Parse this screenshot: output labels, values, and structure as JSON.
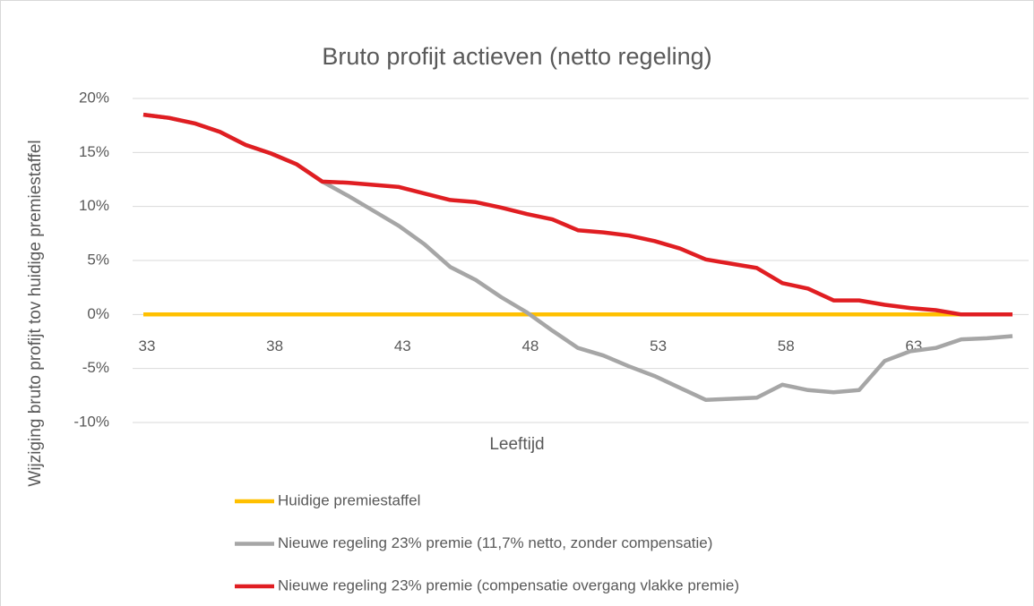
{
  "chart_data": {
    "type": "line",
    "title": "Bruto profijt actieven (netto regeling)",
    "xlabel": "Leeftijd",
    "ylabel": "Wijziging bruto profijt tov huidige premiestaffel",
    "x": [
      33,
      34,
      35,
      36,
      37,
      38,
      39,
      40,
      41,
      42,
      43,
      44,
      45,
      46,
      47,
      48,
      49,
      50,
      51,
      52,
      53,
      54,
      55,
      56,
      57,
      58,
      59,
      60,
      61,
      62,
      63,
      64,
      65,
      66,
      67
    ],
    "xlim": [
      33,
      67
    ],
    "xticks": [
      33,
      38,
      43,
      48,
      53,
      58,
      63
    ],
    "ylim": [
      -10,
      20
    ],
    "yticks": [
      {
        "value": -10,
        "label": "-10%"
      },
      {
        "value": -5,
        "label": "-5%"
      },
      {
        "value": 0,
        "label": "0%"
      },
      {
        "value": 5,
        "label": "5%"
      },
      {
        "value": 10,
        "label": "10%"
      },
      {
        "value": 15,
        "label": "15%"
      },
      {
        "value": 20,
        "label": "20%"
      }
    ],
    "grid": true,
    "legend": "bottom",
    "series": [
      {
        "name": "Huidige premiestaffel",
        "color": "#ffc000",
        "values": [
          0,
          0,
          0,
          0,
          0,
          0,
          0,
          0,
          0,
          0,
          0,
          0,
          0,
          0,
          0,
          0,
          0,
          0,
          0,
          0,
          0,
          0,
          0,
          0,
          0,
          0,
          0,
          0,
          0,
          0,
          0,
          0,
          0,
          0,
          0
        ]
      },
      {
        "name": "Nieuwe regeling 23% premie (11,7% netto, zonder compensatie)",
        "color": "#a6a6a6",
        "values": [
          18.5,
          18.2,
          17.7,
          16.9,
          15.7,
          14.9,
          13.9,
          12.3,
          11.0,
          9.6,
          8.2,
          6.5,
          4.4,
          3.2,
          1.6,
          0.2,
          -1.5,
          -3.1,
          -3.8,
          -4.8,
          -5.7,
          -6.8,
          -7.9,
          -7.8,
          -7.7,
          -6.5,
          -7.0,
          -7.2,
          -7.0,
          -4.3,
          -3.4,
          -3.1,
          -2.3,
          -2.2,
          -2.0
        ]
      },
      {
        "name": "Nieuwe regeling 23% premie (compensatie overgang vlakke premie)",
        "color": "#e01e22",
        "values": [
          18.5,
          18.2,
          17.7,
          16.9,
          15.7,
          14.9,
          13.9,
          12.3,
          12.2,
          12.0,
          11.8,
          11.2,
          10.6,
          10.4,
          9.9,
          9.3,
          8.8,
          7.8,
          7.6,
          7.3,
          6.8,
          6.1,
          5.1,
          4.7,
          4.3,
          2.9,
          2.4,
          1.3,
          1.3,
          0.9,
          0.6,
          0.4,
          0,
          0,
          0
        ]
      }
    ]
  }
}
